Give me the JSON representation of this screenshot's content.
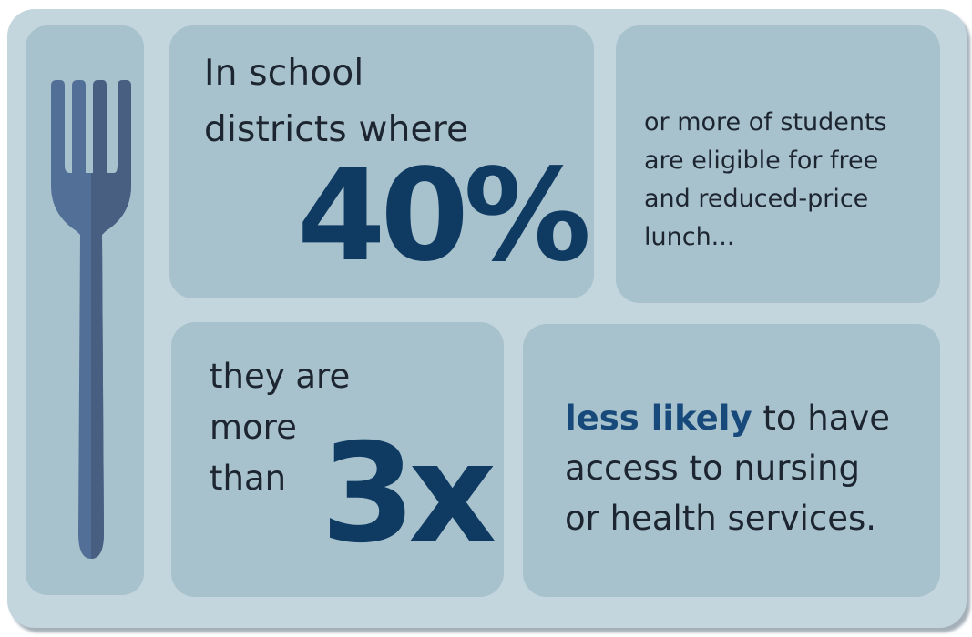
{
  "panel_a": {
    "line1": "In school",
    "line2": "districts where",
    "big_number": "40%"
  },
  "panel_b": {
    "text": "or more of students are eligible for free and reduced-price lunch..."
  },
  "panel_c": {
    "line1": "they are",
    "line2": "more",
    "line3": "than",
    "big_number": "3x"
  },
  "panel_d": {
    "emphasis": "less likely",
    "line1_rest": " to have",
    "line2": "access to nursing",
    "line3": "or health services."
  },
  "colors": {
    "tray": "#c3d5dd",
    "compartment": "#a7c2cd",
    "accent_dark_blue": "#0f3a62",
    "fork": "#4e6a91"
  },
  "icons": {
    "fork": "fork-icon"
  }
}
